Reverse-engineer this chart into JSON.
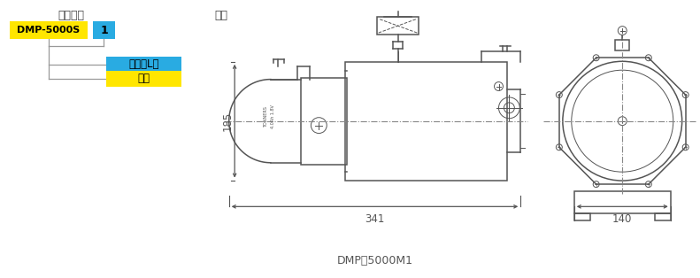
{
  "title_left": "型号说明",
  "title_right": "尺寸",
  "label_yellow": "DMP-5000S",
  "label_blue_num": "1",
  "label_blue_tank": "油箱（L）",
  "label_yellow2": "型号",
  "dim_height": "185",
  "dim_width": "341",
  "dim_side": "140",
  "model_name": "DMP－5000M1",
  "bg_color": "#ffffff",
  "yellow_color": "#FFE600",
  "blue_color": "#29ABE2",
  "line_color": "#999999",
  "draw_color": "#555555",
  "text_color": "#444444",
  "dim_color": "#555555"
}
